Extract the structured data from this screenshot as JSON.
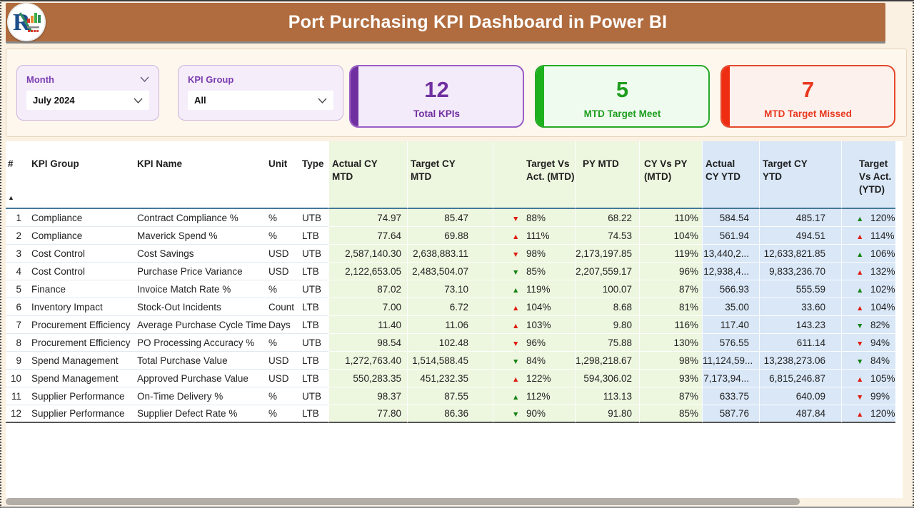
{
  "header": {
    "title": "Port Purchasing KPI Dashboard in Power BI"
  },
  "filters": {
    "month": {
      "label": "Month",
      "value": "July 2024"
    },
    "kpi_group": {
      "label": "KPI Group",
      "value": "All"
    }
  },
  "cards": [
    {
      "value": "12",
      "label": "Total KPIs",
      "color": "#7030a0"
    },
    {
      "value": "5",
      "label": "MTD Target Meet",
      "color": "#1f9e1f"
    },
    {
      "value": "7",
      "label": "MTD Target Missed",
      "color": "#e8391f"
    }
  ],
  "icons": {
    "sort_asc": "▲",
    "arrow_up": "▲",
    "arrow_down": "▼",
    "chevron_down": "⌄"
  },
  "colors": {
    "topbar": "#b06c3e",
    "page_bg": "#fbf1e3",
    "mtd_band": "#edf6df",
    "ytd_band": "#d9e7f7",
    "good_arrow": "#168316",
    "bad_arrow": "#df1d12"
  },
  "table": {
    "columns": [
      "#",
      "KPI Group",
      "KPI Name",
      "Unit",
      "Type",
      "Actual CY MTD",
      "Target CY MTD",
      "Target Vs Act. (MTD)",
      "PY MTD",
      "CY Vs PY (MTD)",
      "Actual CY YTD",
      "Target CY YTD",
      "Target Vs Act. (YTD)"
    ],
    "sort": {
      "column": "#",
      "direction": "ascending"
    },
    "rows": [
      {
        "num": "1",
        "group": "Compliance",
        "name": "Contract Compliance %",
        "unit": "%",
        "type": "UTB",
        "actual_mtd": "74.97",
        "target_mtd": "85.47",
        "vs_mtd": {
          "value": "88%",
          "dir": "down",
          "state": "bad"
        },
        "py_mtd": "68.22",
        "cy_vs_py": "110%",
        "actual_ytd": "584.54",
        "target_ytd": "485.17",
        "vs_ytd": {
          "value": "120%",
          "dir": "up",
          "state": "good"
        }
      },
      {
        "num": "2",
        "group": "Compliance",
        "name": "Maverick Spend %",
        "unit": "%",
        "type": "LTB",
        "actual_mtd": "77.64",
        "target_mtd": "69.88",
        "vs_mtd": {
          "value": "111%",
          "dir": "up",
          "state": "bad"
        },
        "py_mtd": "74.53",
        "cy_vs_py": "104%",
        "actual_ytd": "561.94",
        "target_ytd": "494.51",
        "vs_ytd": {
          "value": "114%",
          "dir": "up",
          "state": "bad"
        }
      },
      {
        "num": "3",
        "group": "Cost Control",
        "name": "Cost Savings",
        "unit": "USD",
        "type": "UTB",
        "actual_mtd": "2,587,140.30",
        "target_mtd": "2,638,883.11",
        "vs_mtd": {
          "value": "98%",
          "dir": "down",
          "state": "bad"
        },
        "py_mtd": "2,173,197.85",
        "cy_vs_py": "119%",
        "actual_ytd": "13,440,2...",
        "target_ytd": "12,633,821.85",
        "vs_ytd": {
          "value": "106%",
          "dir": "up",
          "state": "good"
        }
      },
      {
        "num": "4",
        "group": "Cost Control",
        "name": "Purchase Price Variance",
        "unit": "USD",
        "type": "LTB",
        "actual_mtd": "2,122,653.05",
        "target_mtd": "2,483,504.07",
        "vs_mtd": {
          "value": "85%",
          "dir": "down",
          "state": "good"
        },
        "py_mtd": "2,207,559.17",
        "cy_vs_py": "96%",
        "actual_ytd": "12,938,4...",
        "target_ytd": "9,833,236.70",
        "vs_ytd": {
          "value": "132%",
          "dir": "up",
          "state": "bad"
        }
      },
      {
        "num": "5",
        "group": "Finance",
        "name": "Invoice Match Rate %",
        "unit": "%",
        "type": "UTB",
        "actual_mtd": "87.02",
        "target_mtd": "73.10",
        "vs_mtd": {
          "value": "119%",
          "dir": "up",
          "state": "good"
        },
        "py_mtd": "100.07",
        "cy_vs_py": "87%",
        "actual_ytd": "566.93",
        "target_ytd": "555.59",
        "vs_ytd": {
          "value": "102%",
          "dir": "up",
          "state": "good"
        }
      },
      {
        "num": "6",
        "group": "Inventory Impact",
        "name": "Stock-Out Incidents",
        "unit": "Count",
        "type": "LTB",
        "actual_mtd": "7.00",
        "target_mtd": "6.72",
        "vs_mtd": {
          "value": "104%",
          "dir": "up",
          "state": "bad"
        },
        "py_mtd": "8.68",
        "cy_vs_py": "81%",
        "actual_ytd": "35.00",
        "target_ytd": "33.60",
        "vs_ytd": {
          "value": "104%",
          "dir": "up",
          "state": "bad"
        }
      },
      {
        "num": "7",
        "group": "Procurement Efficiency",
        "name": "Average Purchase Cycle Time",
        "unit": "Days",
        "type": "LTB",
        "actual_mtd": "11.40",
        "target_mtd": "11.06",
        "vs_mtd": {
          "value": "103%",
          "dir": "up",
          "state": "bad"
        },
        "py_mtd": "9.80",
        "cy_vs_py": "116%",
        "actual_ytd": "117.40",
        "target_ytd": "143.23",
        "vs_ytd": {
          "value": "82%",
          "dir": "down",
          "state": "good"
        }
      },
      {
        "num": "8",
        "group": "Procurement Efficiency",
        "name": "PO Processing Accuracy %",
        "unit": "%",
        "type": "UTB",
        "actual_mtd": "98.54",
        "target_mtd": "102.48",
        "vs_mtd": {
          "value": "96%",
          "dir": "down",
          "state": "bad"
        },
        "py_mtd": "75.88",
        "cy_vs_py": "130%",
        "actual_ytd": "576.55",
        "target_ytd": "611.14",
        "vs_ytd": {
          "value": "94%",
          "dir": "down",
          "state": "bad"
        }
      },
      {
        "num": "9",
        "group": "Spend Management",
        "name": "Total Purchase Value",
        "unit": "USD",
        "type": "LTB",
        "actual_mtd": "1,272,763.40",
        "target_mtd": "1,514,588.45",
        "vs_mtd": {
          "value": "84%",
          "dir": "down",
          "state": "good"
        },
        "py_mtd": "1,298,218.67",
        "cy_vs_py": "98%",
        "actual_ytd": "11,124,59...",
        "target_ytd": "13,238,273.06",
        "vs_ytd": {
          "value": "84%",
          "dir": "down",
          "state": "good"
        }
      },
      {
        "num": "10",
        "group": "Spend Management",
        "name": "Approved Purchase Value",
        "unit": "USD",
        "type": "LTB",
        "actual_mtd": "550,283.35",
        "target_mtd": "451,232.35",
        "vs_mtd": {
          "value": "122%",
          "dir": "up",
          "state": "bad"
        },
        "py_mtd": "594,306.02",
        "cy_vs_py": "93%",
        "actual_ytd": "7,173,94...",
        "target_ytd": "6,815,246.87",
        "vs_ytd": {
          "value": "105%",
          "dir": "up",
          "state": "bad"
        }
      },
      {
        "num": "11",
        "group": "Supplier Performance",
        "name": "On-Time Delivery %",
        "unit": "%",
        "type": "UTB",
        "actual_mtd": "98.37",
        "target_mtd": "87.55",
        "vs_mtd": {
          "value": "112%",
          "dir": "up",
          "state": "good"
        },
        "py_mtd": "113.13",
        "cy_vs_py": "87%",
        "actual_ytd": "633.75",
        "target_ytd": "640.09",
        "vs_ytd": {
          "value": "99%",
          "dir": "down",
          "state": "bad"
        }
      },
      {
        "num": "12",
        "group": "Supplier Performance",
        "name": "Supplier Defect Rate %",
        "unit": "%",
        "type": "LTB",
        "actual_mtd": "77.80",
        "target_mtd": "86.36",
        "vs_mtd": {
          "value": "90%",
          "dir": "down",
          "state": "good"
        },
        "py_mtd": "91.80",
        "cy_vs_py": "85%",
        "actual_ytd": "587.76",
        "target_ytd": "487.84",
        "vs_ytd": {
          "value": "120%",
          "dir": "up",
          "state": "bad"
        }
      }
    ]
  }
}
